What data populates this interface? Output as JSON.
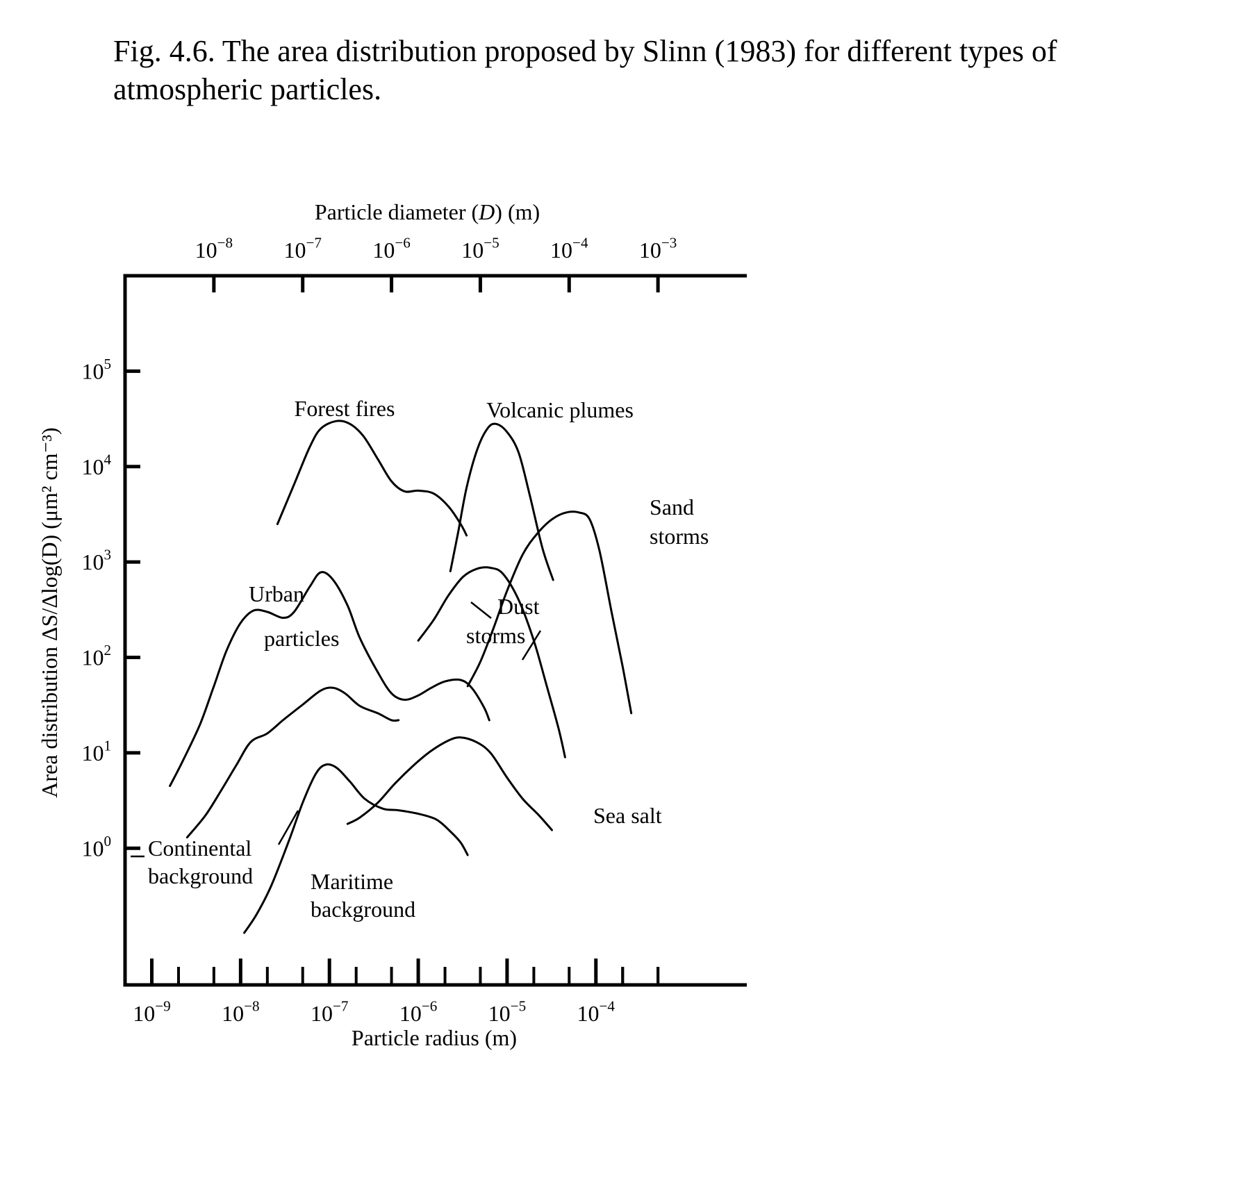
{
  "caption": "Fig. 4.6. The area distribution proposed by Slinn (1983) for different types of atmospheric particles.",
  "chart_data": {
    "type": "line",
    "title": "",
    "x_top": {
      "label": "Particle diameter (D) (m)",
      "scale": "log",
      "ticks": [
        1e-08,
        1e-07,
        1e-06,
        1e-05,
        0.0001,
        0.001
      ],
      "tick_labels": [
        {
          "base": "10",
          "exp": "−8"
        },
        {
          "base": "10",
          "exp": "−7"
        },
        {
          "base": "10",
          "exp": "−6"
        },
        {
          "base": "10",
          "exp": "−5"
        },
        {
          "base": "10",
          "exp": "−4"
        },
        {
          "base": "10",
          "exp": "−3"
        }
      ]
    },
    "x_bottom": {
      "label": "Particle radius (m)",
      "scale": "log",
      "range": [
        5e-10,
        0.005
      ],
      "ticks": [
        1e-09,
        1e-08,
        1e-07,
        1e-06,
        1e-05,
        0.0001
      ],
      "tick_labels": [
        {
          "base": "10",
          "exp": "−9"
        },
        {
          "base": "10",
          "exp": "−8"
        },
        {
          "base": "10",
          "exp": "−7"
        },
        {
          "base": "10",
          "exp": "−6"
        },
        {
          "base": "10",
          "exp": "−5"
        },
        {
          "base": "10",
          "exp": "−4"
        }
      ]
    },
    "y": {
      "label": "Area distribution ΔS/Δlog(D) (μm² cm⁻³)",
      "scale": "log",
      "range": [
        0.037,
        1000000.0
      ],
      "ticks": [
        1,
        10,
        100,
        1000,
        10000,
        100000
      ],
      "tick_labels": [
        {
          "base": "10",
          "exp": "0"
        },
        {
          "base": "10",
          "exp": "1"
        },
        {
          "base": "10",
          "exp": "2"
        },
        {
          "base": "10",
          "exp": "3"
        },
        {
          "base": "10",
          "exp": "4"
        },
        {
          "base": "10",
          "exp": "5"
        }
      ]
    },
    "grid": false,
    "series": [
      {
        "name": "Forest fires",
        "label_lines": [
          "Forest fires"
        ],
        "points": [
          [
            2.6e-08,
            2500
          ],
          [
            4e-08,
            6500
          ],
          [
            6e-08,
            16000
          ],
          [
            8e-08,
            25000
          ],
          [
            1.2e-07,
            30000
          ],
          [
            1.7e-07,
            28000
          ],
          [
            2.4e-07,
            21000
          ],
          [
            3.5e-07,
            12000
          ],
          [
            5e-07,
            7000
          ],
          [
            7e-07,
            5500
          ],
          [
            1e-06,
            5600
          ],
          [
            1.5e-06,
            5200
          ],
          [
            2.2e-06,
            3800
          ],
          [
            3e-06,
            2500
          ],
          [
            3.5e-06,
            1900
          ]
        ]
      },
      {
        "name": "Volcanic plumes",
        "label_lines": [
          "Volcanic plumes"
        ],
        "points": [
          [
            2.3e-06,
            800
          ],
          [
            2.8e-06,
            2000
          ],
          [
            3.5e-06,
            6000
          ],
          [
            4.6e-06,
            15000
          ],
          [
            6e-06,
            25000
          ],
          [
            7.5e-06,
            28000
          ],
          [
            1e-05,
            23000
          ],
          [
            1.35e-05,
            14000
          ],
          [
            1.8e-05,
            5000
          ],
          [
            2.5e-05,
            1400
          ],
          [
            3.3e-05,
            650
          ]
        ]
      },
      {
        "name": "Sand storms",
        "label_lines": [
          "Sand",
          "storms"
        ],
        "points": [
          [
            3.6e-06,
            50
          ],
          [
            5e-06,
            90
          ],
          [
            7e-06,
            200
          ],
          [
            1e-05,
            500
          ],
          [
            1.5e-05,
            1200
          ],
          [
            2.2e-05,
            2000
          ],
          [
            3.2e-05,
            2800
          ],
          [
            4.6e-05,
            3300
          ],
          [
            6.5e-05,
            3300
          ],
          [
            8.5e-05,
            2800
          ],
          [
            0.00011,
            1300
          ],
          [
            0.00015,
            300
          ],
          [
            0.0002,
            80
          ],
          [
            0.00025,
            26
          ]
        ]
      },
      {
        "name": "Dust storms",
        "label_lines": [
          "Dust",
          "storms"
        ],
        "points": [
          [
            1e-06,
            150
          ],
          [
            1.5e-06,
            250
          ],
          [
            2.2e-06,
            450
          ],
          [
            3.2e-06,
            700
          ],
          [
            4.6e-06,
            850
          ],
          [
            6.5e-06,
            870
          ],
          [
            9e-06,
            750
          ],
          [
            1.35e-05,
            400
          ],
          [
            2e-05,
            150
          ],
          [
            2.8e-05,
            50
          ],
          [
            3.8e-05,
            18
          ],
          [
            4.5e-05,
            9
          ]
        ]
      },
      {
        "name": "Urban particles",
        "label_lines": [
          "Urban",
          "particles"
        ],
        "points": [
          [
            1.6e-09,
            4.5
          ],
          [
            2.2e-09,
            8
          ],
          [
            3.5e-09,
            20
          ],
          [
            5e-09,
            50
          ],
          [
            7e-09,
            120
          ],
          [
            1e-08,
            230
          ],
          [
            1.4e-08,
            310
          ],
          [
            2e-08,
            300
          ],
          [
            3e-08,
            260
          ],
          [
            4e-08,
            300
          ],
          [
            6e-08,
            550
          ],
          [
            8e-08,
            780
          ],
          [
            1.1e-07,
            650
          ],
          [
            1.6e-07,
            350
          ],
          [
            2.2e-07,
            160
          ],
          [
            3.5e-07,
            70
          ],
          [
            5e-07,
            42
          ],
          [
            7e-07,
            36
          ],
          [
            1e-06,
            40
          ],
          [
            1.4e-06,
            48
          ],
          [
            2e-06,
            56
          ],
          [
            3e-06,
            58
          ],
          [
            4e-06,
            48
          ],
          [
            5.5e-06,
            30
          ],
          [
            6.3e-06,
            22
          ]
        ]
      },
      {
        "name": "Continental background",
        "label_lines": [
          "Continental",
          "background"
        ],
        "points": [
          [
            2.5e-09,
            1.3
          ],
          [
            4e-09,
            2.2
          ],
          [
            6e-09,
            4
          ],
          [
            9e-09,
            7.5
          ],
          [
            1.3e-08,
            13
          ],
          [
            2e-08,
            16
          ],
          [
            3e-08,
            22
          ],
          [
            5e-08,
            32
          ],
          [
            8e-08,
            45
          ],
          [
            1.1e-07,
            48
          ],
          [
            1.5e-07,
            42
          ],
          [
            2.2e-07,
            31
          ],
          [
            3.5e-07,
            26
          ],
          [
            5e-07,
            22
          ],
          [
            6e-07,
            22
          ]
        ]
      },
      {
        "name": "Maritime background",
        "label_lines": [
          "Maritime",
          "background"
        ],
        "points": [
          [
            1.1e-08,
            0.13
          ],
          [
            1.5e-08,
            0.2
          ],
          [
            2.2e-08,
            0.4
          ],
          [
            3.5e-08,
            1.2
          ],
          [
            5e-08,
            3
          ],
          [
            7e-08,
            6
          ],
          [
            9e-08,
            7.5
          ],
          [
            1.2e-07,
            7
          ],
          [
            1.7e-07,
            5
          ],
          [
            2.5e-07,
            3.3
          ],
          [
            4e-07,
            2.6
          ],
          [
            6e-07,
            2.5
          ],
          [
            1e-06,
            2.3
          ],
          [
            1.6e-06,
            2
          ],
          [
            2.3e-06,
            1.5
          ],
          [
            3e-06,
            1.15
          ],
          [
            3.6e-06,
            0.85
          ]
        ]
      },
      {
        "name": "Sea salt",
        "label_lines": [
          "Sea salt"
        ],
        "points": [
          [
            1.6e-07,
            1.8
          ],
          [
            2.2e-07,
            2.1
          ],
          [
            3.5e-07,
            3
          ],
          [
            5.5e-07,
            4.8
          ],
          [
            9e-07,
            7.5
          ],
          [
            1.4e-06,
            10.5
          ],
          [
            2.2e-06,
            13.5
          ],
          [
            3e-06,
            14.5
          ],
          [
            4.5e-06,
            13
          ],
          [
            6.5e-06,
            10
          ],
          [
            1e-05,
            5.5
          ],
          [
            1.5e-05,
            3.3
          ],
          [
            2.3e-05,
            2.2
          ],
          [
            3.2e-05,
            1.55
          ]
        ]
      }
    ]
  }
}
